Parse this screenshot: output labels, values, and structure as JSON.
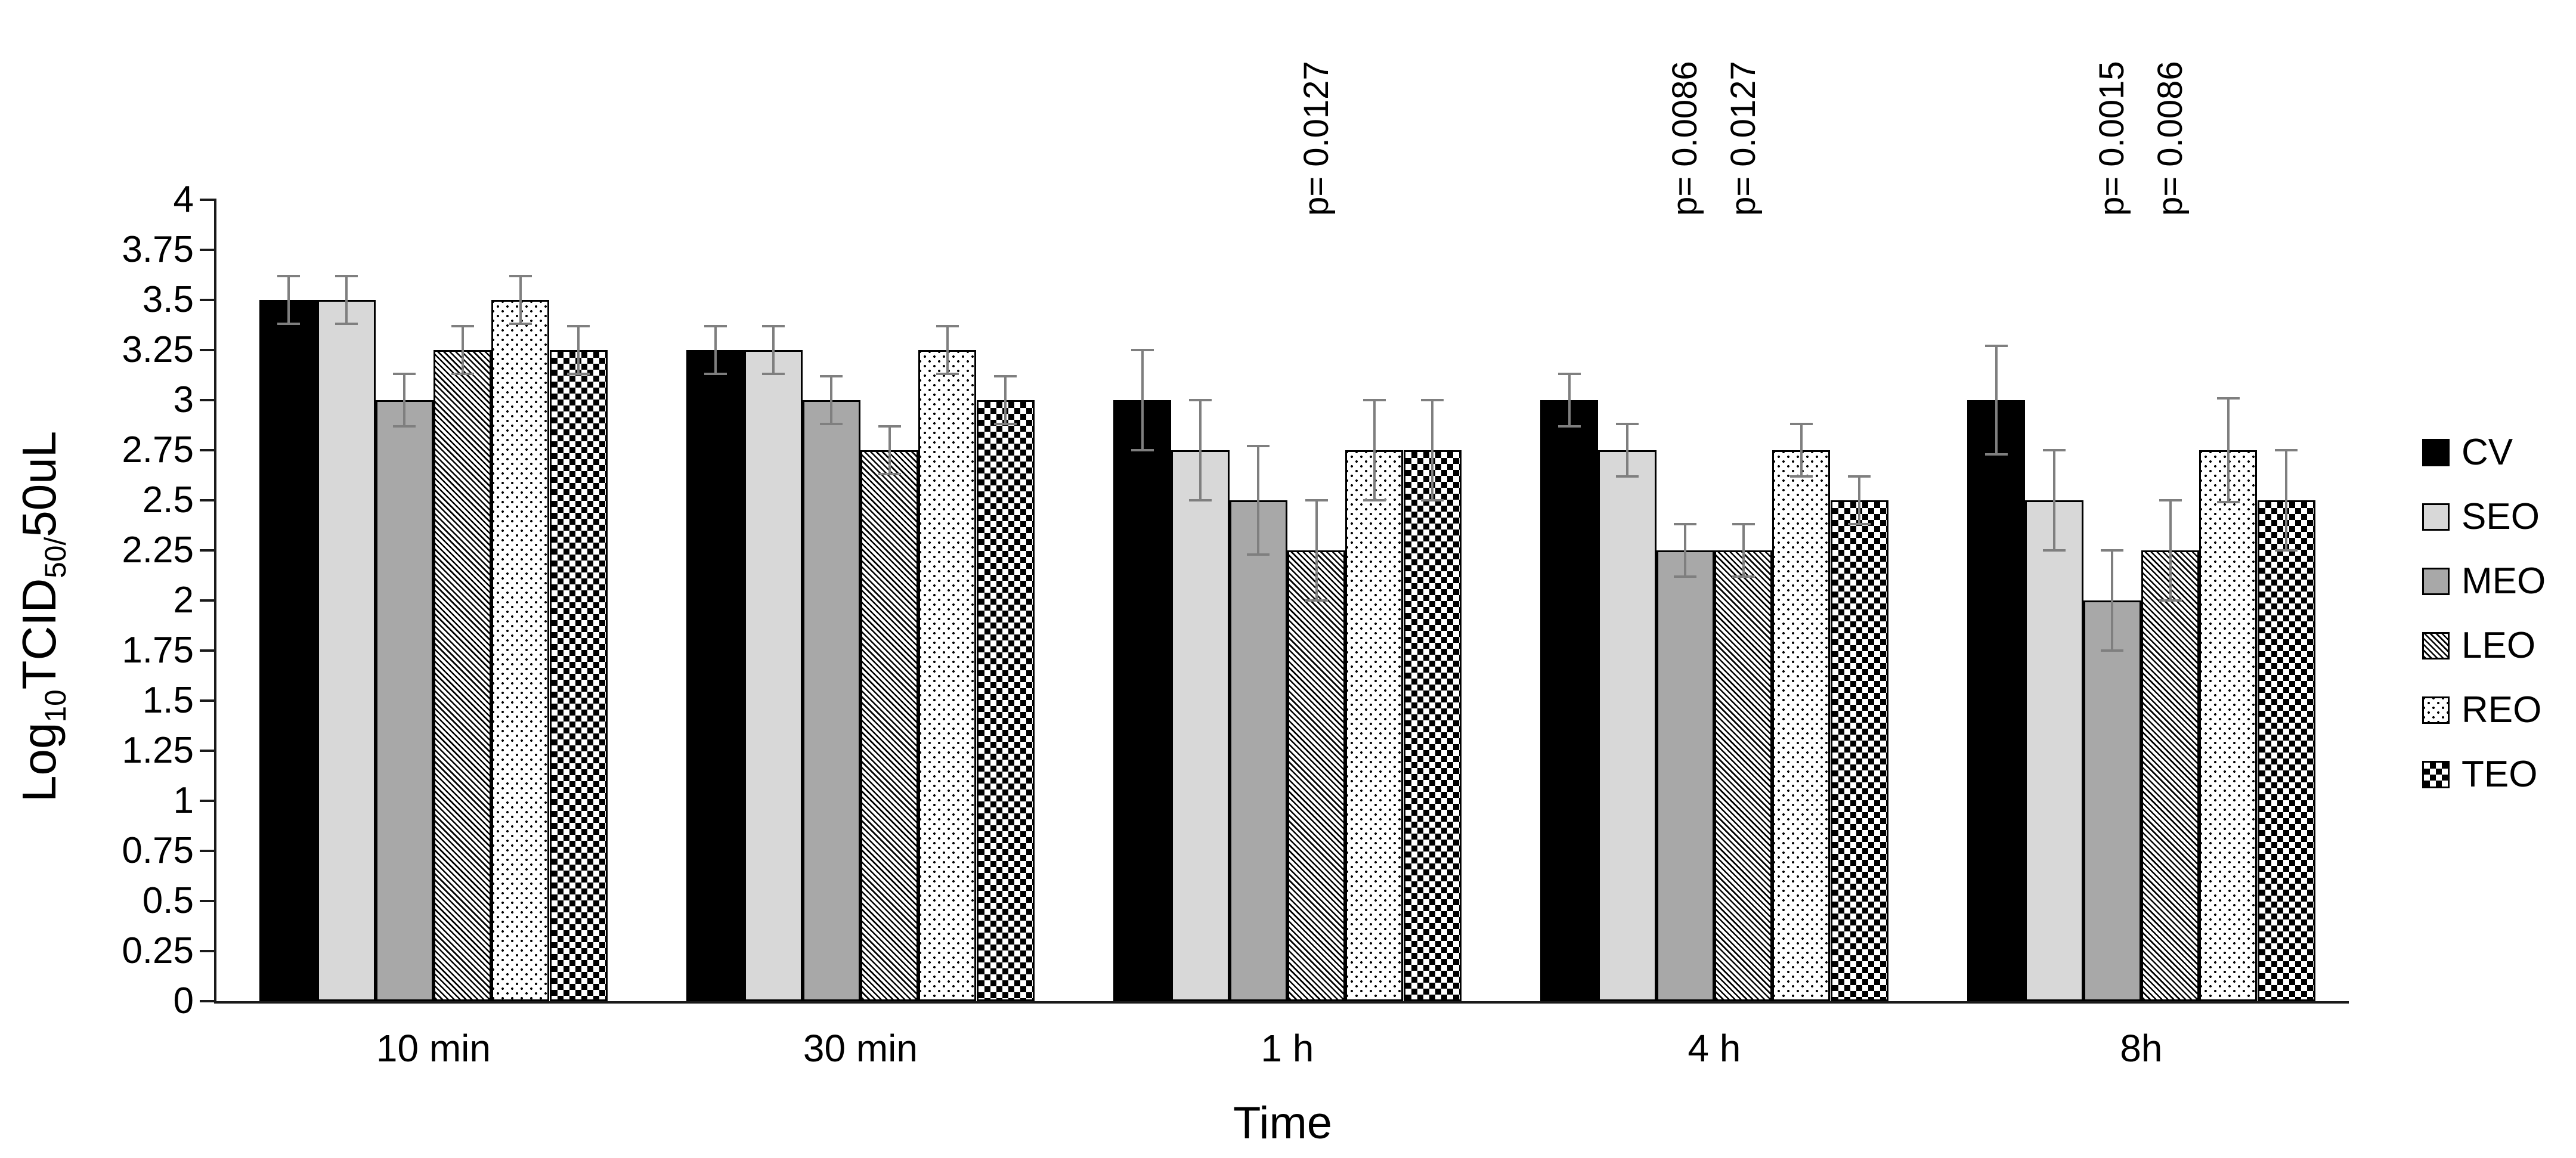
{
  "chart_data": {
    "type": "bar",
    "title": "",
    "xlabel": "Time",
    "ylabel": "Log10TCID50/50uL",
    "ylabel_parts": [
      {
        "text": "Log"
      },
      {
        "text": "10",
        "sub": true
      },
      {
        "text": "TCID"
      },
      {
        "text": "50/",
        "sub": true
      },
      {
        "text": "50uL"
      }
    ],
    "ylim": [
      0,
      4
    ],
    "ytick_labels": [
      "0",
      "0.25",
      "0.5",
      "0.75",
      "1",
      "1.25",
      "1.5",
      "1.75",
      "2",
      "2.25",
      "2.5",
      "2.75",
      "3",
      "3.25",
      "3.5",
      "3.75",
      "4"
    ],
    "grid": false,
    "legend_position": "right",
    "categories": [
      "10 min",
      "30 min",
      "1 h",
      "4 h",
      "8h"
    ],
    "series": [
      {
        "name": "CV",
        "pattern": "solid-black",
        "color": "#000000",
        "values": [
          3.5,
          3.25,
          3.0,
          3.0,
          3.0
        ],
        "errors": [
          0.12,
          0.12,
          0.25,
          0.13,
          0.27
        ]
      },
      {
        "name": "SEO",
        "pattern": "solid-light-gray",
        "color": "#d8d8d8",
        "values": [
          3.5,
          3.25,
          2.75,
          2.75,
          2.5
        ],
        "errors": [
          0.12,
          0.12,
          0.25,
          0.13,
          0.25
        ]
      },
      {
        "name": "MEO",
        "pattern": "solid-medium-gray",
        "color": "#a8a8a8",
        "values": [
          3.0,
          3.0,
          2.5,
          2.25,
          2.0
        ],
        "errors": [
          0.13,
          0.12,
          0.27,
          0.13,
          0.25
        ]
      },
      {
        "name": "LEO",
        "pattern": "diagonal-stripes",
        "color": "#000000",
        "values": [
          3.25,
          2.75,
          2.25,
          2.25,
          2.25
        ],
        "errors": [
          0.12,
          0.12,
          0.25,
          0.13,
          0.25
        ]
      },
      {
        "name": "REO",
        "pattern": "dots",
        "color": "#000000",
        "values": [
          3.5,
          3.25,
          2.75,
          2.75,
          2.75
        ],
        "errors": [
          0.12,
          0.12,
          0.25,
          0.13,
          0.26
        ]
      },
      {
        "name": "TEO",
        "pattern": "checkerboard",
        "color": "#000000",
        "values": [
          3.25,
          3.0,
          2.75,
          2.5,
          2.5
        ],
        "errors": [
          0.12,
          0.12,
          0.25,
          0.12,
          0.25
        ]
      }
    ],
    "error_bar_color": "#7f7f7f",
    "annotations": [
      {
        "text": "p= 0.0127",
        "category": "1 h",
        "series": "LEO"
      },
      {
        "text": "p= 0.0086",
        "category": "4 h",
        "series": "MEO"
      },
      {
        "text": "p= 0.0127",
        "category": "4 h",
        "series": "LEO"
      },
      {
        "text": "p= 0.0015",
        "category": "8h",
        "series": "MEO"
      },
      {
        "text": "p= 0.0086",
        "category": "8h",
        "series": "LEO"
      }
    ]
  }
}
